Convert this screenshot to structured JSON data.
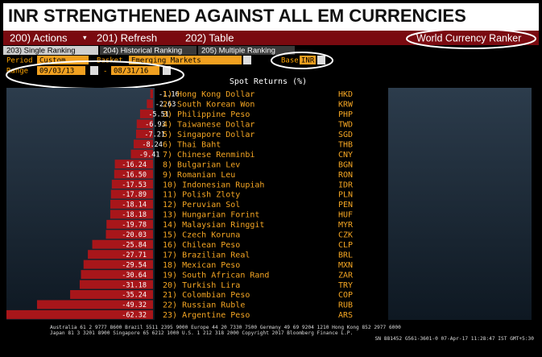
{
  "header": {
    "title": "INR STRENGTHENED AGAINST ALL EM CURRENCIES",
    "menu": [
      "200) Actions",
      "201) Refresh",
      "202) Table"
    ],
    "app_name": "World Currency Ranker"
  },
  "tabs": [
    "203) Single Ranking",
    "204) Historical Ranking",
    "205) Multiple Ranking"
  ],
  "controls": {
    "period_label": "Period",
    "period": "Custom",
    "basket_label": "Basket",
    "basket": "Emerging Markets",
    "base_label": "Base",
    "base": "INR",
    "range_label": "Range",
    "start_date": "09/03/13",
    "separator": "-",
    "end_date": "08/31/16"
  },
  "chart_data": {
    "type": "bar",
    "orientation": "horizontal",
    "title": "Spot Returns (%)",
    "categories": [
      "1) Hong Kong Dollar",
      "2) South Korean Won",
      "3) Philippine Peso",
      "4) Taiwanese Dollar",
      "5) Singapore Dollar",
      "6) Thai Baht",
      "7) Chinese Renminbi",
      "8) Bulgarian Lev",
      "9) Romanian Leu",
      "10) Indonesian Rupiah",
      "11) Polish Zloty",
      "12) Peruvian Sol",
      "13) Hungarian Forint",
      "14) Malaysian Ringgit",
      "15) Czech Koruna",
      "16) Chilean Peso",
      "17) Brazilian Real",
      "18) Mexican Peso",
      "19) South African Rand",
      "20) Turkish Lira",
      "21) Colombian Peso",
      "22) Russian Ruble",
      "23) Argentine Peso"
    ],
    "codes": [
      "HKD",
      "KRW",
      "PHP",
      "TWD",
      "SGD",
      "THB",
      "CNY",
      "BGN",
      "RON",
      "IDR",
      "PLN",
      "PEN",
      "HUF",
      "MYR",
      "CZK",
      "CLP",
      "BRL",
      "MXN",
      "ZAR",
      "TRY",
      "COP",
      "RUB",
      "ARS"
    ],
    "values": [
      -1.16,
      -2.63,
      -5.51,
      -6.93,
      -7.21,
      -8.24,
      -9.41,
      -16.24,
      -16.5,
      -17.53,
      -17.89,
      -18.14,
      -18.18,
      -19.78,
      -20.03,
      -25.84,
      -27.71,
      -29.54,
      -30.64,
      -31.18,
      -35.24,
      -49.32,
      -62.32
    ],
    "value_labels": [
      "-1.16",
      "-2.63",
      "-5.51",
      "-6.93",
      "-7.21",
      "-8.24",
      "-9.41",
      "-16.24",
      "-16.50",
      "-17.53",
      "-17.89",
      "-18.14",
      "-18.18",
      "-19.78",
      "-20.03",
      "-25.84",
      "-27.71",
      "-29.54",
      "-30.64",
      "-31.18",
      "-35.24",
      "-49.32",
      "-62.32"
    ],
    "color": "#a8161a"
  },
  "footer": [
    "Australia 61 2 9777 8600 Brazil 5511 2395 9000 Europe 44 20 7330 7500 Germany 49 69 9204 1210 Hong Kong 852 2977 6000",
    "Japan 81 3 3201 8900      Singapore 65 6212 1000      U.S. 1 212 318 2000      Copyright 2017 Bloomberg Finance L.P.",
    "SN 881452 G561-3601-0 07-Apr-17 11:28:47 IST  GMT+5:30"
  ]
}
